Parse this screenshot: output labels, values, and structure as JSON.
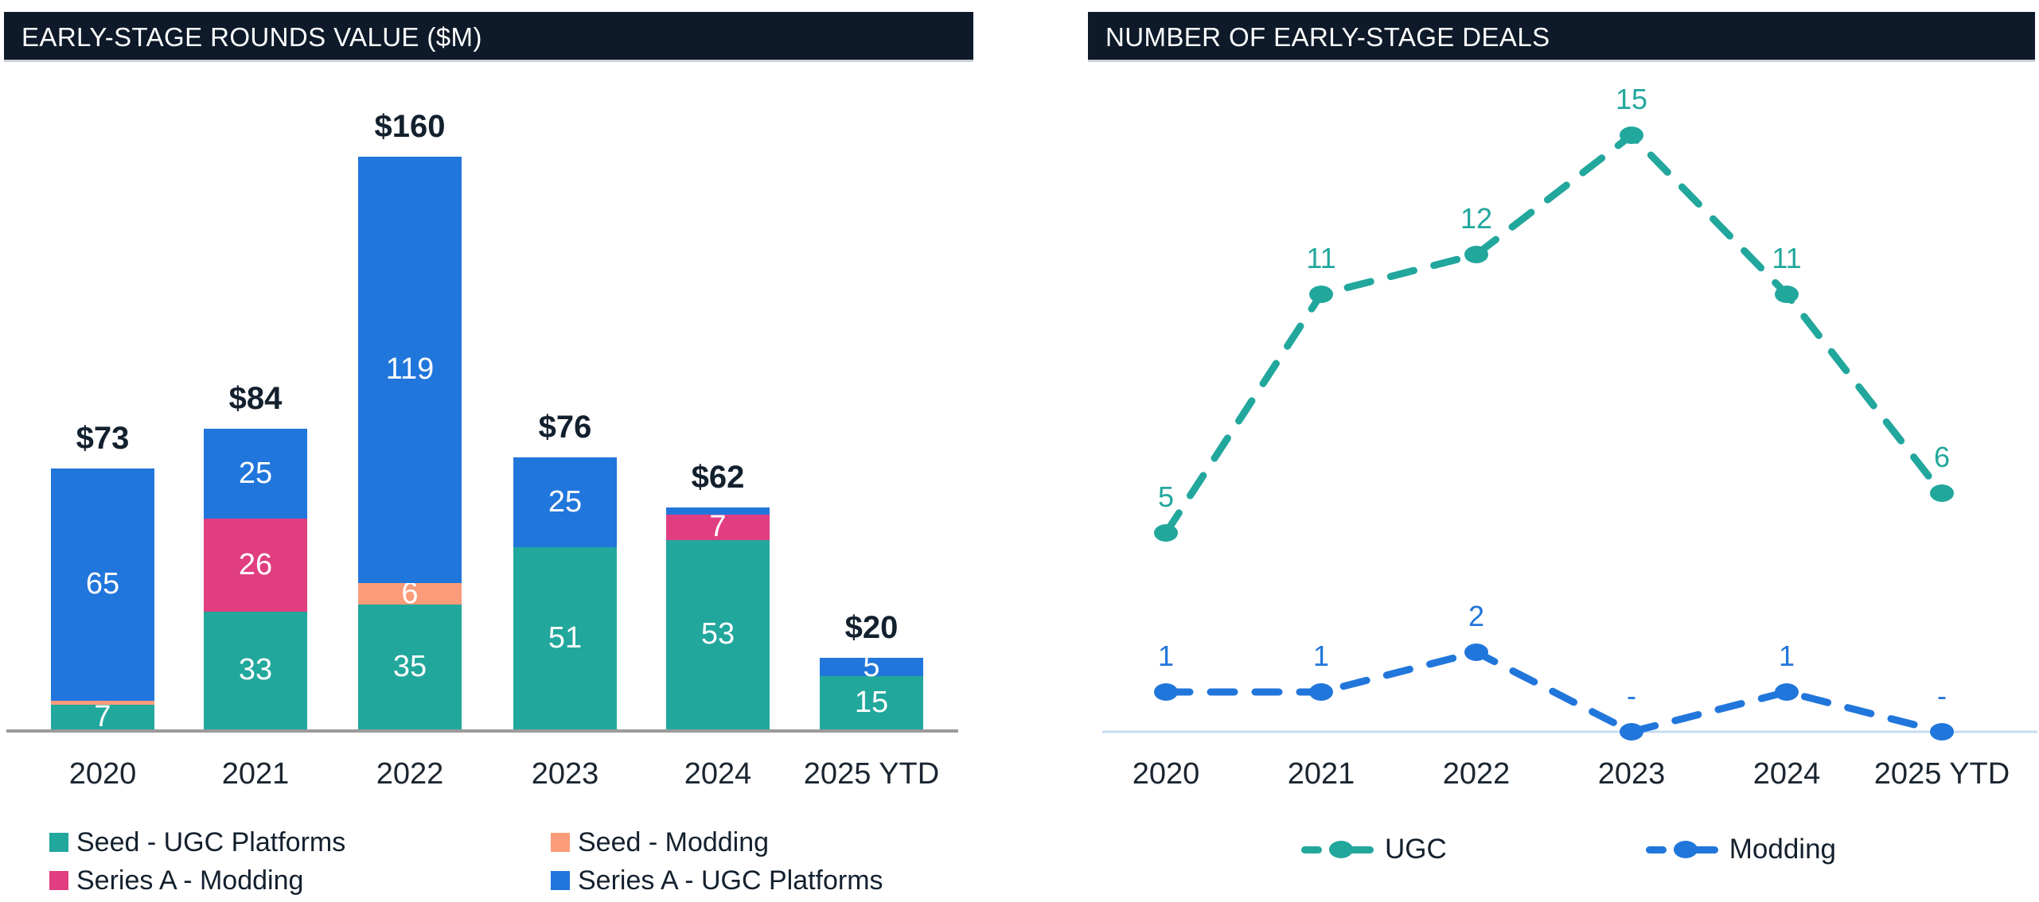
{
  "chart_data": [
    {
      "type": "bar",
      "stacked": true,
      "title": "EARLY-STAGE ROUNDS VALUE ($M)",
      "categories": [
        "2020",
        "2021",
        "2022",
        "2023",
        "2024",
        "2025 YTD"
      ],
      "total_labels": [
        "$73",
        "$84",
        "$160",
        "$76",
        "$62",
        "$20"
      ],
      "ylim": [
        0,
        160
      ],
      "grid": false,
      "legend_position": "bottom",
      "series": [
        {
          "name": "Seed - UGC Platforms",
          "color": "#22A79D",
          "values": [
            7,
            33,
            35,
            51,
            53,
            15
          ],
          "labels": [
            "7",
            "33",
            "35",
            "51",
            "53",
            "15"
          ]
        },
        {
          "name": "Seed - Modding",
          "color": "#FA9B7A",
          "values": [
            1,
            0,
            6,
            0,
            0,
            0
          ],
          "labels": [
            "",
            "",
            "6",
            "",
            "",
            ""
          ]
        },
        {
          "name": "Series A - Modding",
          "color": "#E03E81",
          "values": [
            0,
            26,
            0,
            0,
            7,
            0
          ],
          "labels": [
            "",
            "26",
            "",
            "",
            "7",
            ""
          ]
        },
        {
          "name": "Series A - UGC Platforms",
          "color": "#2176DB",
          "values": [
            65,
            25,
            119,
            25,
            2,
            5
          ],
          "labels": [
            "65",
            "25",
            "119",
            "25",
            "",
            "5"
          ]
        }
      ]
    },
    {
      "type": "line",
      "dashed": true,
      "title": "NUMBER OF EARLY-STAGE DEALS",
      "categories": [
        "2020",
        "2021",
        "2022",
        "2023",
        "2024",
        "2025 YTD"
      ],
      "ylim": [
        0,
        16
      ],
      "grid": false,
      "legend_position": "bottom",
      "baseline_color": "#C7DCF0",
      "series": [
        {
          "name": "UGC",
          "color": "#22A79D",
          "values": [
            5,
            11,
            12,
            15,
            11,
            6
          ],
          "point_labels": [
            "5",
            "11",
            "12",
            "15",
            "11",
            "6"
          ]
        },
        {
          "name": "Modding",
          "color": "#2176DB",
          "values": [
            1,
            1,
            2,
            0,
            1,
            0
          ],
          "point_labels": [
            "1",
            "1",
            "2",
            "-",
            "1",
            "-"
          ]
        }
      ]
    }
  ]
}
